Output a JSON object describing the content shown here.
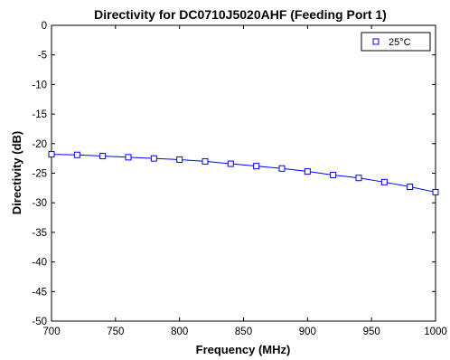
{
  "chart_data": {
    "type": "line",
    "title": "Directivity for DC0710J5020AHF (Feeding Port 1)",
    "xlabel": "Frequency (MHz)",
    "ylabel": "Directivity (dB)",
    "xlim": [
      700,
      1000
    ],
    "ylim": [
      -50,
      0
    ],
    "xticks": [
      700,
      750,
      800,
      850,
      900,
      950,
      1000
    ],
    "yticks": [
      0,
      -5,
      -10,
      -15,
      -20,
      -25,
      -30,
      -35,
      -40,
      -45,
      -50
    ],
    "grid": true,
    "grid_style": "dashed",
    "legend_position": "top-right",
    "series": [
      {
        "name": "25°C",
        "color": "#0000ff",
        "marker": "square",
        "x": [
          700,
          720,
          740,
          760,
          780,
          800,
          820,
          840,
          860,
          880,
          900,
          920,
          940,
          960,
          980,
          1000
        ],
        "y": [
          -21.8,
          -21.9,
          -22.1,
          -22.3,
          -22.5,
          -22.7,
          -23.0,
          -23.4,
          -23.8,
          -24.2,
          -24.7,
          -25.3,
          -25.8,
          -26.5,
          -27.3,
          -28.2
        ]
      }
    ]
  }
}
